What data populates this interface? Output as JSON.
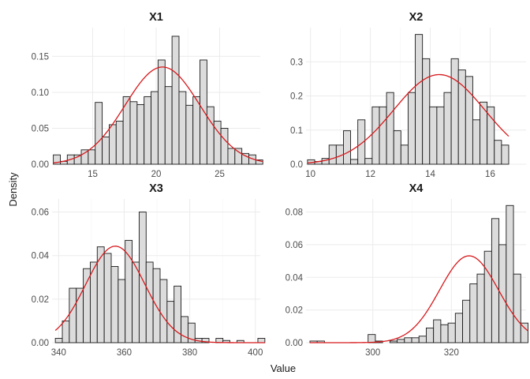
{
  "chart_data": {
    "type": "bar",
    "xlabel": "Value",
    "ylabel": "Density",
    "colors": {
      "bar_fill": "#dcdcdc",
      "bar_stroke": "#1a1a1a",
      "curve": "#d7191c",
      "grid": "#ebebeb"
    },
    "grid": true,
    "panels": [
      {
        "title": "X1",
        "xlim": [
          11.8,
          28.2
        ],
        "ylim": [
          0,
          0.19
        ],
        "xticks": [
          15,
          20,
          25
        ],
        "yticks": [
          0.0,
          0.05,
          0.1,
          0.15
        ],
        "ytick_labels": [
          "0.00",
          "0.05",
          "0.10",
          "0.15"
        ],
        "bin_start": 11.9,
        "bin_width": 0.55,
        "densities": [
          0.013,
          0.004,
          0.013,
          0.013,
          0.02,
          0.02,
          0.086,
          0.038,
          0.055,
          0.06,
          0.094,
          0.087,
          0.083,
          0.094,
          0.101,
          0.145,
          0.108,
          0.178,
          0.101,
          0.082,
          0.094,
          0.145,
          0.08,
          0.06,
          0.05,
          0.022,
          0.022,
          0.015,
          0.013,
          0.006
        ],
        "normal_fit": {
          "mean": 20.5,
          "sd": 2.95
        }
      },
      {
        "title": "X2",
        "xlim": [
          9.85,
          17.2
        ],
        "ylim": [
          0,
          0.4
        ],
        "xticks": [
          10,
          12,
          14,
          16
        ],
        "yticks": [
          0.0,
          0.1,
          0.2,
          0.3
        ],
        "ytick_labels": [
          "0.0",
          "0.1",
          "0.2",
          "0.3"
        ],
        "bin_start": 9.9,
        "bin_width": 0.24,
        "densities": [
          0.013,
          0.008,
          0.017,
          0.056,
          0.056,
          0.098,
          0.014,
          0.13,
          0.017,
          0.168,
          0.168,
          0.21,
          0.098,
          0.056,
          0.21,
          0.38,
          0.309,
          0.168,
          0.168,
          0.21,
          0.309,
          0.276,
          0.257,
          0.13,
          0.182,
          0.168,
          0.07,
          0.056
        ],
        "normal_fit": {
          "mean": 14.3,
          "sd": 1.52
        }
      },
      {
        "title": "X3",
        "xlim": [
          338,
          401.5
        ],
        "ylim": [
          0,
          0.066
        ],
        "xticks": [
          340,
          360,
          380,
          400
        ],
        "yticks": [
          0.0,
          0.02,
          0.04,
          0.06
        ],
        "ytick_labels": [
          "0.00",
          "0.02",
          "0.04",
          "0.06"
        ],
        "bin_start": 339.0,
        "bin_width": 2.13,
        "densities": [
          0.002,
          0.01,
          0.025,
          0.025,
          0.034,
          0.037,
          0.044,
          0.041,
          0.035,
          0.029,
          0.047,
          0.037,
          0.06,
          0.037,
          0.034,
          0.029,
          0.019,
          0.026,
          0.012,
          0.009,
          0.002,
          0.002,
          0.0,
          0.002,
          0.001,
          0.0,
          0.001,
          0.0,
          0.0,
          0.002
        ],
        "normal_fit": {
          "mean": 357.3,
          "sd": 9.0
        }
      },
      {
        "title": "X4",
        "xlim": [
          283,
          339
        ],
        "ylim": [
          0,
          0.088
        ],
        "xticks": [
          300,
          320
        ],
        "yticks": [
          0.0,
          0.02,
          0.04,
          0.06,
          0.08
        ],
        "ytick_labels": [
          "0.00",
          "0.02",
          "0.04",
          "0.06",
          "0.08"
        ],
        "bin_start": 284.0,
        "bin_width": 1.85,
        "densities": [
          0.001,
          0.001,
          0.0,
          0.0,
          0.0,
          0.0,
          0.0,
          0.0,
          0.005,
          0.001,
          0.0,
          0.001,
          0.002,
          0.003,
          0.003,
          0.004,
          0.009,
          0.014,
          0.011,
          0.012,
          0.018,
          0.026,
          0.036,
          0.042,
          0.056,
          0.076,
          0.06,
          0.084,
          0.042,
          0.012
        ],
        "normal_fit": {
          "mean": 324.5,
          "sd": 7.5
        }
      }
    ]
  }
}
